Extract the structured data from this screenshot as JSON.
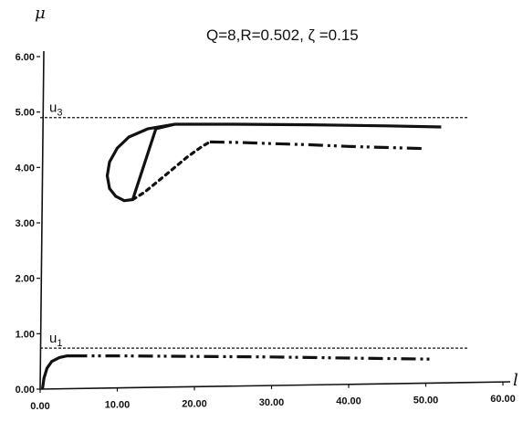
{
  "chart_data": {
    "type": "line",
    "title": "Q=8,R=0.502, ζ =0.15",
    "xlabel": "l",
    "ylabel": "μ",
    "xlim": [
      0,
      60
    ],
    "ylim": [
      0,
      6
    ],
    "x_ticks": [
      "0.00",
      "10.00",
      "20.00",
      "30.00",
      "40.00",
      "50.00",
      "60.00"
    ],
    "y_ticks": [
      "0.00",
      "1.00",
      "2.00",
      "3.00",
      "4.00",
      "5.00",
      "6.00"
    ],
    "grid": false,
    "reference_lines": [
      {
        "label": "u3",
        "y": 4.9,
        "x_range": [
          0,
          55.5
        ]
      },
      {
        "label": "u1",
        "y": 0.74,
        "x_range": [
          0,
          55.5
        ]
      }
    ],
    "series": [
      {
        "style": "solid",
        "color": "#111111",
        "x": [
          17.5,
          14.0,
          11.5,
          10.0,
          9.0,
          8.7,
          9.0,
          9.8,
          10.9,
          12.0,
          15.0,
          17.5,
          25.0,
          35.0,
          45.0,
          52.0
        ],
        "y": [
          4.78,
          4.7,
          4.55,
          4.35,
          4.1,
          3.85,
          3.62,
          3.48,
          3.4,
          3.42,
          4.7,
          4.78,
          4.78,
          4.77,
          4.75,
          4.73
        ]
      },
      {
        "style": "dotted",
        "color": "#111111",
        "x": [
          12.0,
          13.5,
          15.0,
          17.0,
          19.0,
          21.0,
          22.0
        ],
        "y": [
          3.42,
          3.55,
          3.72,
          3.95,
          4.18,
          4.38,
          4.46
        ]
      },
      {
        "style": "dash-dot-dot",
        "color": "#111111",
        "x": [
          22.0,
          26.0,
          30.0,
          35.0,
          40.0,
          45.0,
          50.0
        ],
        "y": [
          4.46,
          4.45,
          4.43,
          4.41,
          4.38,
          4.36,
          4.34
        ]
      },
      {
        "style": "solid",
        "color": "#111111",
        "x": [
          0.3,
          0.5,
          0.9,
          1.5,
          2.5,
          3.5,
          4.2
        ],
        "y": [
          0.0,
          0.2,
          0.38,
          0.5,
          0.57,
          0.6,
          0.6
        ]
      },
      {
        "style": "dash-dot-dot",
        "color": "#111111",
        "x": [
          4.2,
          10.0,
          20.0,
          30.0,
          40.0,
          51.0
        ],
        "y": [
          0.6,
          0.6,
          0.59,
          0.58,
          0.56,
          0.54
        ]
      }
    ]
  }
}
